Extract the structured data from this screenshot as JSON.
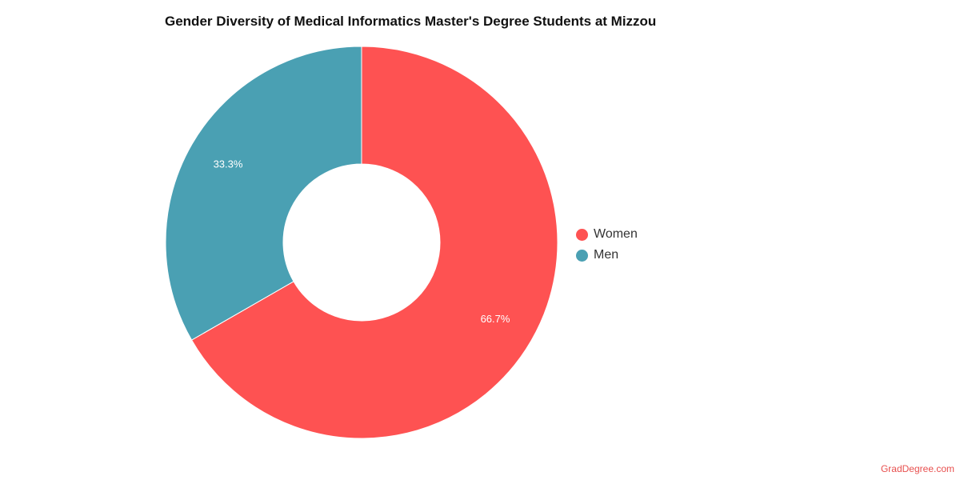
{
  "chart_data": {
    "type": "pie",
    "title": "Gender Diversity of Medical Informatics Master's Degree Students at Mizzou",
    "categories": [
      "Women",
      "Men"
    ],
    "values": [
      66.7,
      33.3
    ],
    "labels": [
      "66.7%",
      "33.3%"
    ],
    "colors": [
      "#fe5252",
      "#4aa0b3"
    ],
    "donut": true,
    "legend_position": "right"
  },
  "source": "GradDegree.com"
}
